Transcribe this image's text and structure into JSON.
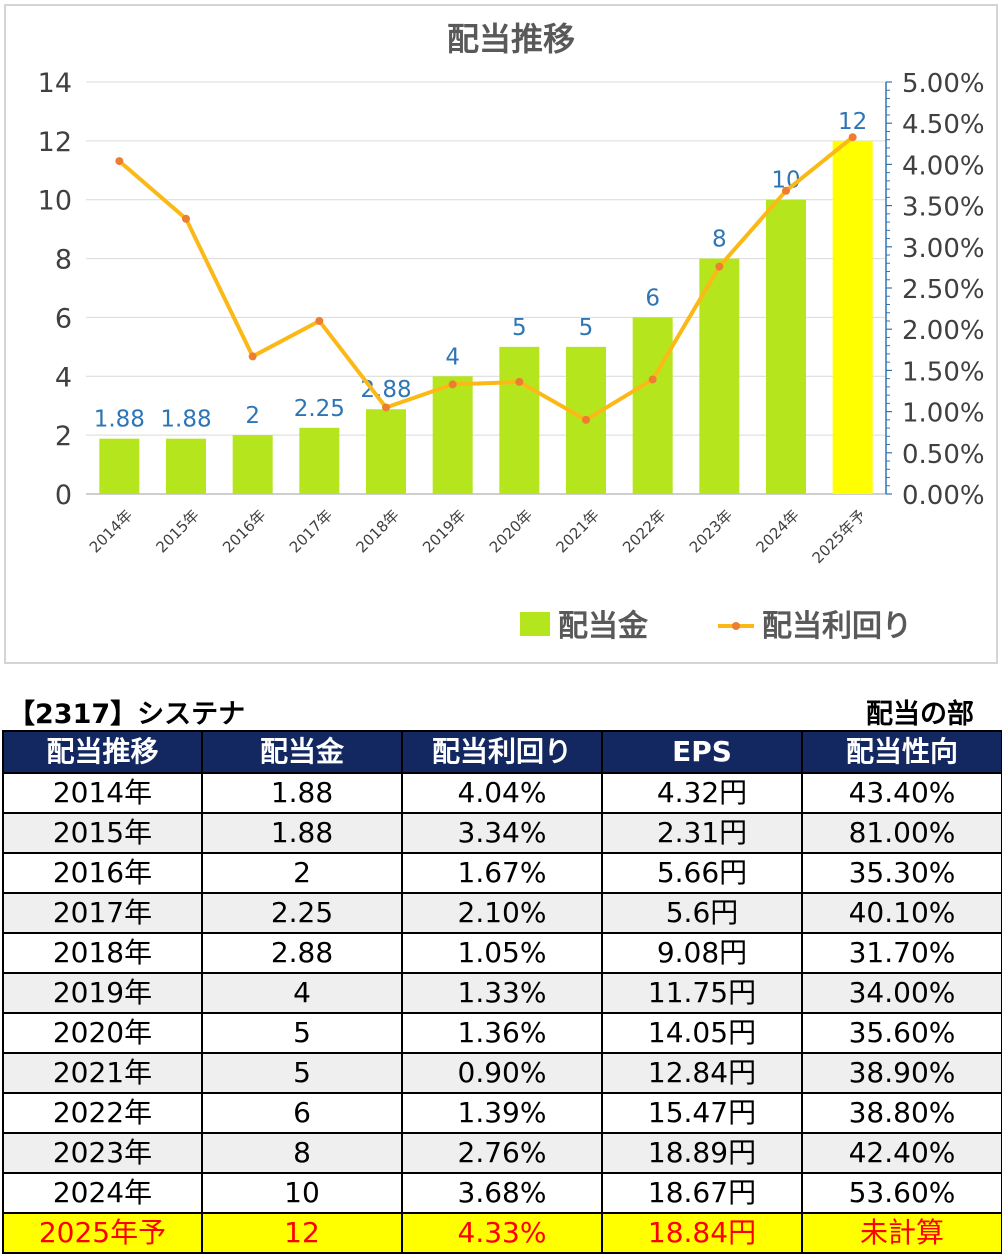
{
  "chart_data": {
    "type": "bar+line",
    "title": "配当推移",
    "categories": [
      "2014年",
      "2015年",
      "2016年",
      "2017年",
      "2018年",
      "2019年",
      "2020年",
      "2021年",
      "2022年",
      "2023年",
      "2024年",
      "2025年予"
    ],
    "series": [
      {
        "name": "配当金",
        "type": "bar",
        "axis": "left",
        "color": "#b5e61d",
        "highlight_last_color": "#ffff00",
        "values": [
          1.88,
          1.88,
          2,
          2.25,
          2.88,
          4,
          5,
          5,
          6,
          8,
          10,
          12
        ],
        "labels": [
          "1.88",
          "1.88",
          "2",
          "2.25",
          "2.88",
          "4",
          "5",
          "5",
          "6",
          "8",
          "10",
          "12"
        ]
      },
      {
        "name": "配当利回り",
        "type": "line",
        "axis": "right",
        "color": "#fbb917",
        "marker_color": "#ed7d31",
        "values": [
          4.04,
          3.34,
          1.67,
          2.1,
          1.05,
          1.33,
          1.36,
          0.9,
          1.39,
          2.76,
          3.68,
          4.33
        ]
      }
    ],
    "yleft": {
      "min": 0,
      "max": 14,
      "ticks": [
        "0",
        "2",
        "4",
        "6",
        "8",
        "10",
        "12",
        "14"
      ]
    },
    "yright": {
      "min": 0,
      "max": 5,
      "ticks": [
        "0.00%",
        "0.50%",
        "1.00%",
        "1.50%",
        "2.00%",
        "2.50%",
        "3.00%",
        "3.50%",
        "4.00%",
        "4.50%",
        "5.00%"
      ]
    },
    "grid": true,
    "legend_position": "bottom-right"
  },
  "header": {
    "company": "【2317】システナ",
    "section": "配当の部"
  },
  "table": {
    "columns": [
      "配当推移",
      "配当金",
      "配当利回り",
      "EPS",
      "配当性向"
    ],
    "rows": [
      [
        "2014年",
        "1.88",
        "4.04%",
        "4.32円",
        "43.40%"
      ],
      [
        "2015年",
        "1.88",
        "3.34%",
        "2.31円",
        "81.00%"
      ],
      [
        "2016年",
        "2",
        "1.67%",
        "5.66円",
        "35.30%"
      ],
      [
        "2017年",
        "2.25",
        "2.10%",
        "5.6円",
        "40.10%"
      ],
      [
        "2018年",
        "2.88",
        "1.05%",
        "9.08円",
        "31.70%"
      ],
      [
        "2019年",
        "4",
        "1.33%",
        "11.75円",
        "34.00%"
      ],
      [
        "2020年",
        "5",
        "1.36%",
        "14.05円",
        "35.60%"
      ],
      [
        "2021年",
        "5",
        "0.90%",
        "12.84円",
        "38.90%"
      ],
      [
        "2022年",
        "6",
        "1.39%",
        "15.47円",
        "38.80%"
      ],
      [
        "2023年",
        "8",
        "2.76%",
        "18.89円",
        "42.40%"
      ],
      [
        "2024年",
        "10",
        "3.68%",
        "18.67円",
        "53.60%"
      ],
      [
        "2025年予",
        "12",
        "4.33%",
        "18.84円",
        "未計算"
      ]
    ]
  }
}
